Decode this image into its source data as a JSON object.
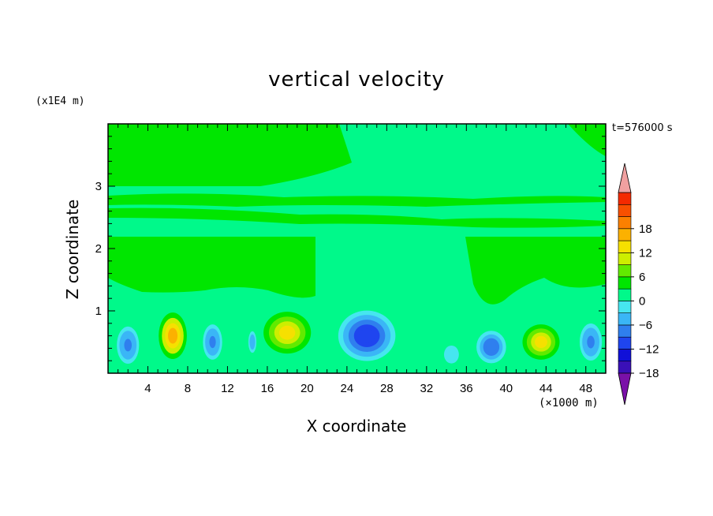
{
  "chart_data": {
    "type": "heatmap",
    "title": "vertical velocity",
    "xlabel": "X coordinate",
    "ylabel": "Z coordinate",
    "x_unit_label": "(×1000 m)",
    "y_unit_label": "(x1E4 m)",
    "time_label": "t=576000 s",
    "xlim": [
      0,
      50
    ],
    "ylim": [
      0,
      4
    ],
    "x_ticks": [
      "4",
      "8",
      "12",
      "16",
      "20",
      "24",
      "28",
      "32",
      "36",
      "40",
      "44",
      "48"
    ],
    "y_ticks": [
      "1",
      "2",
      "3"
    ],
    "colorbar": {
      "range": [
        -21,
        21
      ],
      "step": 3,
      "labels": [
        "18",
        "12",
        "6",
        "0",
        "−6",
        "−12",
        "−18"
      ],
      "label_values": [
        18,
        12,
        6,
        0,
        -6,
        -12,
        -18
      ],
      "colors": [
        "#7a10a8",
        "#3a10b8",
        "#1010d8",
        "#1f45ef",
        "#2f7fee",
        "#3ab6f6",
        "#46e6ef",
        "#00f98a",
        "#00e600",
        "#62ea00",
        "#cdee00",
        "#f6e000",
        "#fcb100",
        "#fb8000",
        "#f85000",
        "#f42a00",
        "#f0a0a0"
      ],
      "over_color": "#f0a0a0",
      "under_color": "#7a10a8"
    },
    "features": [
      {
        "x": 6.5,
        "z": 0.6,
        "w": 180,
        "sx": 1.9,
        "sz": 0.5
      },
      {
        "x": 18.0,
        "z": 0.65,
        "w": 150,
        "sx": 3.2,
        "sz": 0.45
      },
      {
        "x": 43.5,
        "z": 0.5,
        "w": 140,
        "sx": 2.5,
        "sz": 0.38
      },
      {
        "x": 13.0,
        "z": 0.55,
        "w": 20,
        "sx": 0.8,
        "sz": 0.35
      },
      {
        "x": 26.0,
        "z": 0.6,
        "w": -130,
        "sx": 3.2,
        "sz": 0.45
      },
      {
        "x": 38.5,
        "z": 0.42,
        "w": -100,
        "sx": 2.0,
        "sz": 0.35
      },
      {
        "x": 10.5,
        "z": 0.5,
        "w": -80,
        "sx": 1.3,
        "sz": 0.38
      },
      {
        "x": 2.0,
        "z": 0.45,
        "w": -70,
        "sx": 1.5,
        "sz": 0.4
      },
      {
        "x": 48.5,
        "z": 0.5,
        "w": -75,
        "sx": 1.5,
        "sz": 0.4
      },
      {
        "x": 14.5,
        "z": 0.5,
        "w": -45,
        "sx": 0.7,
        "sz": 0.3
      },
      {
        "x": 34.5,
        "z": 0.3,
        "w": -30,
        "sx": 1.3,
        "sz": 0.25
      }
    ]
  }
}
